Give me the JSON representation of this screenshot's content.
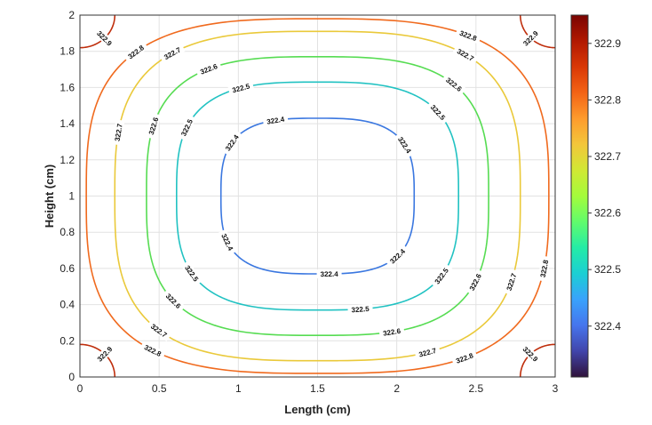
{
  "chart_data": {
    "type": "contour",
    "xlabel": "Length (cm)",
    "ylabel": "Height (cm)",
    "xlim": [
      0,
      3
    ],
    "ylim": [
      0,
      2
    ],
    "x_ticks": [
      "0",
      "0.5",
      "1",
      "1.5",
      "2",
      "2.5",
      "3"
    ],
    "y_ticks": [
      "0",
      "0.2",
      "0.4",
      "0.6",
      "0.8",
      "1",
      "1.2",
      "1.4",
      "1.6",
      "1.8",
      "2"
    ],
    "grid": true,
    "center": [
      1.5,
      1.0
    ],
    "levels": [
      {
        "value": 322.4,
        "label": "322.4",
        "half_width": 0.61,
        "half_height": 0.43,
        "color": "#3a77e0"
      },
      {
        "value": 322.5,
        "label": "322.5",
        "half_width": 0.89,
        "half_height": 0.63,
        "color": "#21c2c2"
      },
      {
        "value": 322.6,
        "label": "322.6",
        "half_width": 1.08,
        "half_height": 0.77,
        "color": "#56dc52"
      },
      {
        "value": 322.7,
        "label": "322.7",
        "half_width": 1.28,
        "half_height": 0.91,
        "color": "#eac93a"
      },
      {
        "value": 322.8,
        "label": "322.8",
        "half_width": 1.46,
        "half_height": 0.98,
        "color": "#f06a1e"
      }
    ],
    "corner_level": {
      "value": 322.9,
      "label": "322.9",
      "color": "#bf2e0c"
    },
    "colorbar": {
      "min": 322.31,
      "max": 322.95,
      "ticks": [
        "322.4",
        "322.5",
        "322.6",
        "322.7",
        "322.8",
        "322.9"
      ],
      "tick_values": [
        322.4,
        322.5,
        322.6,
        322.7,
        322.8,
        322.9
      ],
      "colormap": "turbo",
      "stops": [
        "#30123b",
        "#4145ab",
        "#4675ed",
        "#39a2fc",
        "#1bcfd4",
        "#24eca6",
        "#61fc6c",
        "#a4fc3b",
        "#d1e834",
        "#f3c63a",
        "#fe9b2d",
        "#f36315",
        "#d93806",
        "#b11901",
        "#7a0402"
      ]
    }
  }
}
